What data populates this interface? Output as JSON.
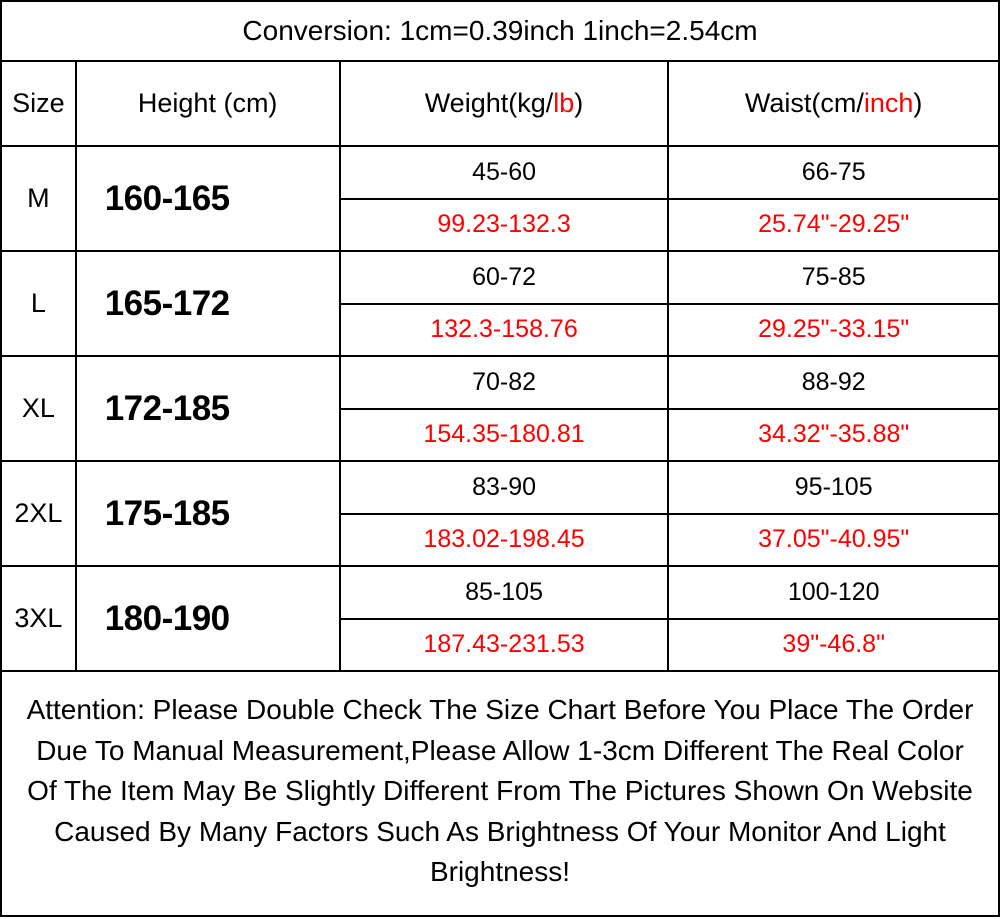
{
  "colors": {
    "border": "#000000",
    "text": "#000000",
    "accent": "#ff0000",
    "background": "#ffffff"
  },
  "conversion": "Conversion: 1cm=0.39inch 1inch=2.54cm",
  "headers": {
    "size": "Size",
    "height": "Height (cm)",
    "weight_prefix": "Weight(kg/",
    "weight_accent": "lb",
    "weight_suffix": ")",
    "waist_prefix": "Waist(cm/",
    "waist_accent": "inch",
    "waist_suffix": ")"
  },
  "rows": [
    {
      "size": "M",
      "height": "160-165",
      "weight_top": "45-60",
      "weight_bot": "99.23-132.3",
      "waist_top": "66-75",
      "waist_bot": "25.74\"-29.25\""
    },
    {
      "size": "L",
      "height": "165-172",
      "weight_top": "60-72",
      "weight_bot": "132.3-158.76",
      "waist_top": "75-85",
      "waist_bot": "29.25\"-33.15\""
    },
    {
      "size": "XL",
      "height": "172-185",
      "weight_top": "70-82",
      "weight_bot": "154.35-180.81",
      "waist_top": "88-92",
      "waist_bot": "34.32\"-35.88\""
    },
    {
      "size": "2XL",
      "height": "175-185",
      "weight_top": "83-90",
      "weight_bot": "183.02-198.45",
      "waist_top": "95-105",
      "waist_bot": "37.05\"-40.95\""
    },
    {
      "size": "3XL",
      "height": "180-190",
      "weight_top": "85-105",
      "weight_bot": "187.43-231.53",
      "waist_top": "100-120",
      "waist_bot": "39\"-46.8\""
    }
  ],
  "attention": "Attention: Please Double Check The Size Chart Before You Place The Order Due To Manual Measurement,Please Allow 1-3cm Different The Real Color Of The Item May Be Slightly Different From The Pictures Shown On Website Caused By Many Factors Such As Brightness Of Your Monitor And Light Brightness!"
}
